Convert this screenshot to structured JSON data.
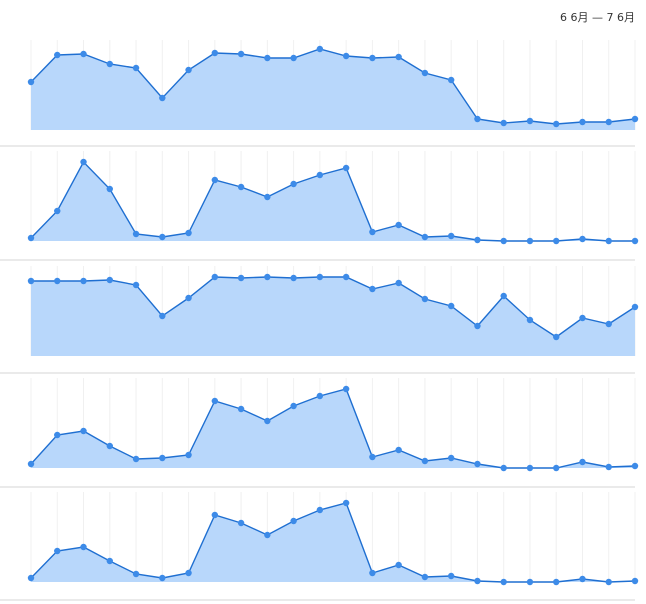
{
  "date_range": "6 6月 — 7 6月",
  "chart_data": [
    {
      "type": "area",
      "color": "#1f6fd1",
      "fill": "#b8d7fb",
      "ylim": [
        0,
        90
      ],
      "values": [
        48,
        75,
        76,
        66,
        62,
        32,
        60,
        77,
        76,
        72,
        72,
        81,
        74,
        72,
        73,
        57,
        50,
        11,
        7,
        9,
        6,
        8,
        8,
        11
      ]
    },
    {
      "type": "area",
      "color": "#1f6fd1",
      "fill": "#b8d7fb",
      "ylim": [
        0,
        90
      ],
      "values": [
        3,
        30,
        79,
        52,
        7,
        4,
        8,
        61,
        54,
        44,
        57,
        66,
        73,
        9,
        16,
        4,
        5,
        1,
        0,
        0,
        0,
        2,
        0,
        0
      ]
    },
    {
      "type": "area",
      "color": "#1f6fd1",
      "fill": "#b8d7fb",
      "ylim": [
        0,
        90
      ],
      "values": [
        75,
        75,
        75,
        76,
        71,
        40,
        58,
        79,
        78,
        79,
        78,
        79,
        79,
        67,
        73,
        57,
        50,
        30,
        60,
        36,
        19,
        38,
        32,
        49
      ]
    },
    {
      "type": "area",
      "color": "#1f6fd1",
      "fill": "#b8d7fb",
      "ylim": [
        0,
        90
      ],
      "values": [
        4,
        33,
        37,
        22,
        9,
        10,
        13,
        67,
        59,
        47,
        62,
        72,
        79,
        11,
        18,
        7,
        10,
        4,
        0,
        0,
        0,
        6,
        1,
        2
      ]
    },
    {
      "type": "area",
      "color": "#1f6fd1",
      "fill": "#b8d7fb",
      "ylim": [
        0,
        90
      ],
      "values": [
        4,
        31,
        35,
        21,
        8,
        4,
        9,
        67,
        59,
        47,
        61,
        72,
        79,
        9,
        17,
        5,
        6,
        1,
        0,
        0,
        0,
        3,
        0,
        1
      ]
    }
  ]
}
